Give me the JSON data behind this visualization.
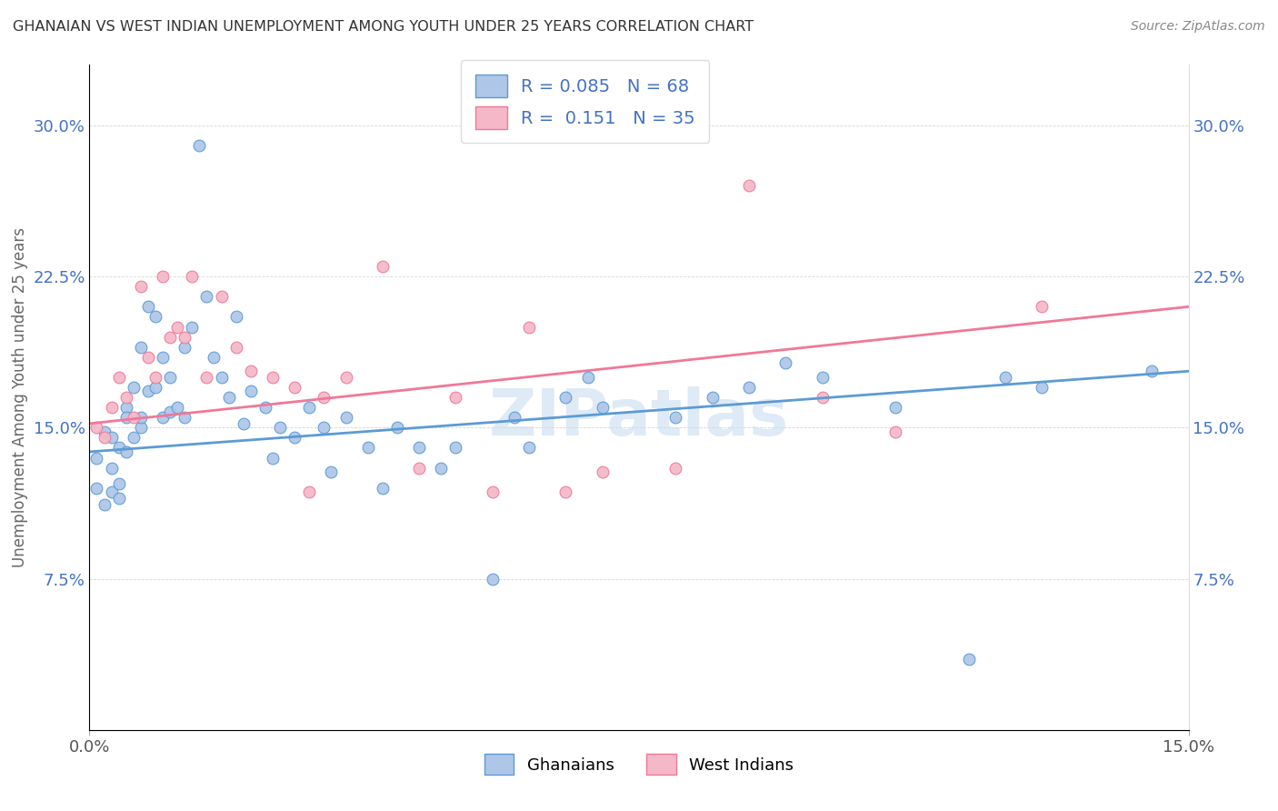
{
  "title": "GHANAIAN VS WEST INDIAN UNEMPLOYMENT AMONG YOUTH UNDER 25 YEARS CORRELATION CHART",
  "source": "Source: ZipAtlas.com",
  "ylabel": "Unemployment Among Youth under 25 years",
  "xlim": [
    0.0,
    0.15
  ],
  "ylim": [
    0.0,
    0.33
  ],
  "R_ghanaian": 0.085,
  "N_ghanaian": 68,
  "R_west_indian": 0.151,
  "N_west_indian": 35,
  "color_ghanaian_face": "#aec6e8",
  "color_ghanaian_edge": "#5b9bd5",
  "color_west_indian_face": "#f4b8c8",
  "color_west_indian_edge": "#f07898",
  "line_color_ghanaian": "#5b9bd5",
  "line_color_west_indian": "#f07898",
  "text_color_R": "#4472c4",
  "watermark_text": "ZIPatlas",
  "background_color": "#ffffff",
  "yticks": [
    0.075,
    0.15,
    0.225,
    0.3
  ],
  "ytick_labels": [
    "7.5%",
    "15.0%",
    "22.5%",
    "30.0%"
  ],
  "xticks": [
    0.0,
    0.15
  ],
  "xtick_labels": [
    "0.0%",
    "15.0%"
  ],
  "legend_labels_bottom": [
    "Ghanaians",
    "West Indians"
  ],
  "ghanaian_x": [
    0.001,
    0.001,
    0.002,
    0.002,
    0.003,
    0.003,
    0.003,
    0.004,
    0.004,
    0.004,
    0.005,
    0.005,
    0.005,
    0.006,
    0.006,
    0.007,
    0.007,
    0.007,
    0.008,
    0.008,
    0.009,
    0.009,
    0.01,
    0.01,
    0.011,
    0.011,
    0.012,
    0.013,
    0.013,
    0.014,
    0.015,
    0.016,
    0.017,
    0.018,
    0.019,
    0.02,
    0.021,
    0.022,
    0.024,
    0.025,
    0.026,
    0.028,
    0.03,
    0.032,
    0.033,
    0.035,
    0.038,
    0.04,
    0.042,
    0.045,
    0.048,
    0.05,
    0.055,
    0.058,
    0.06,
    0.065,
    0.068,
    0.07,
    0.08,
    0.085,
    0.09,
    0.095,
    0.1,
    0.11,
    0.12,
    0.125,
    0.13,
    0.145
  ],
  "ghanaian_y": [
    0.12,
    0.135,
    0.112,
    0.148,
    0.13,
    0.145,
    0.118,
    0.122,
    0.14,
    0.115,
    0.16,
    0.155,
    0.138,
    0.17,
    0.145,
    0.19,
    0.15,
    0.155,
    0.21,
    0.168,
    0.205,
    0.17,
    0.155,
    0.185,
    0.158,
    0.175,
    0.16,
    0.19,
    0.155,
    0.2,
    0.29,
    0.215,
    0.185,
    0.175,
    0.165,
    0.205,
    0.152,
    0.168,
    0.16,
    0.135,
    0.15,
    0.145,
    0.16,
    0.15,
    0.128,
    0.155,
    0.14,
    0.12,
    0.15,
    0.14,
    0.13,
    0.14,
    0.075,
    0.155,
    0.14,
    0.165,
    0.175,
    0.16,
    0.155,
    0.165,
    0.17,
    0.182,
    0.175,
    0.16,
    0.035,
    0.175,
    0.17,
    0.178
  ],
  "west_indian_x": [
    0.001,
    0.002,
    0.003,
    0.004,
    0.005,
    0.006,
    0.007,
    0.008,
    0.009,
    0.01,
    0.011,
    0.012,
    0.013,
    0.014,
    0.016,
    0.018,
    0.02,
    0.022,
    0.025,
    0.028,
    0.03,
    0.032,
    0.035,
    0.04,
    0.045,
    0.05,
    0.055,
    0.06,
    0.065,
    0.07,
    0.08,
    0.09,
    0.1,
    0.11,
    0.13
  ],
  "west_indian_y": [
    0.15,
    0.145,
    0.16,
    0.175,
    0.165,
    0.155,
    0.22,
    0.185,
    0.175,
    0.225,
    0.195,
    0.2,
    0.195,
    0.225,
    0.175,
    0.215,
    0.19,
    0.178,
    0.175,
    0.17,
    0.118,
    0.165,
    0.175,
    0.23,
    0.13,
    0.165,
    0.118,
    0.2,
    0.118,
    0.128,
    0.13,
    0.27,
    0.165,
    0.148,
    0.21
  ],
  "g_line_x0": 0.0,
  "g_line_y0": 0.138,
  "g_line_x1": 0.15,
  "g_line_y1": 0.178,
  "w_line_x0": 0.0,
  "w_line_y0": 0.152,
  "w_line_x1": 0.15,
  "w_line_y1": 0.21
}
